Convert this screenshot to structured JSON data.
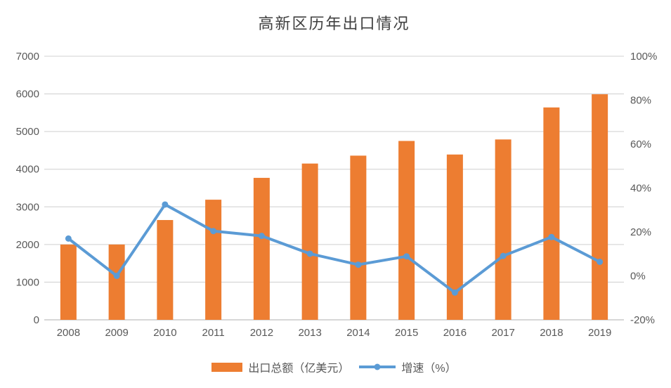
{
  "title": "高新区历年出口情况",
  "legend": {
    "bar_label": "出口总额（亿美元）",
    "line_label": "增速（%）"
  },
  "colors": {
    "bar": "#ED7D31",
    "line": "#5B9BD5",
    "grid": "#D9D9D9",
    "axis_line": "#BFBFBF",
    "axis_text": "#595959",
    "title_text": "#404040"
  },
  "chart_data": {
    "type": "combo-bar-line",
    "title": "高新区历年出口情况",
    "categories": [
      "2008",
      "2009",
      "2010",
      "2011",
      "2012",
      "2013",
      "2014",
      "2015",
      "2016",
      "2017",
      "2018",
      "2019"
    ],
    "series": [
      {
        "name": "出口总额（亿美元）",
        "type": "bar",
        "axis": "left",
        "values": [
          2000,
          2000,
          2650,
          3190,
          3770,
          4150,
          4360,
          4750,
          4390,
          4790,
          5640,
          5990
        ]
      },
      {
        "name": "增速（%）",
        "type": "line",
        "axis": "right",
        "values": [
          17,
          0,
          32.5,
          20.4,
          18.2,
          10.1,
          5.1,
          8.9,
          -7.6,
          9.1,
          17.7,
          6.4
        ]
      }
    ],
    "left_axis": {
      "min": 0,
      "max": 7000,
      "step": 1000,
      "tick_labels": [
        "0",
        "1000",
        "2000",
        "3000",
        "4000",
        "5000",
        "6000",
        "7000"
      ]
    },
    "right_axis": {
      "min": -20,
      "max": 100,
      "step": 20,
      "tick_labels": [
        "-20%",
        "0%",
        "20%",
        "40%",
        "60%",
        "80%",
        "100%"
      ]
    },
    "grid": true,
    "legend_position": "bottom"
  }
}
